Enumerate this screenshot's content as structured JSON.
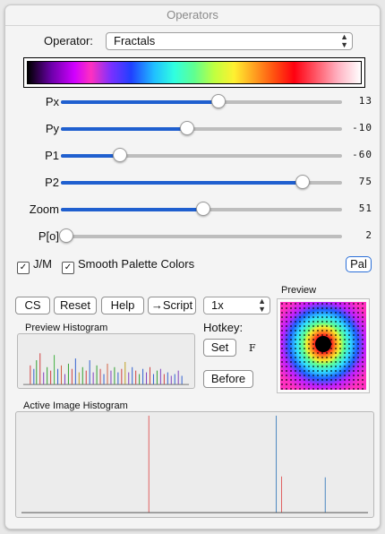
{
  "window": {
    "title": "Operators"
  },
  "operator": {
    "label": "Operator:",
    "value": "Fractals"
  },
  "sliders": [
    {
      "label": "Px",
      "value": "13",
      "fraction": 0.56
    },
    {
      "label": "Py",
      "value": "-10",
      "fraction": 0.45
    },
    {
      "label": "P1",
      "value": "-60",
      "fraction": 0.21
    },
    {
      "label": "P2",
      "value": "75",
      "fraction": 0.86
    },
    {
      "label": "Zoom",
      "value": "51",
      "fraction": 0.505
    },
    {
      "label": "P[o]",
      "value": "2",
      "fraction": 0.02
    }
  ],
  "options": {
    "jm_label": "J/M",
    "jm_checked": true,
    "smooth_label": "Smooth Palette Colors",
    "smooth_checked": true,
    "pal_label": "Pal"
  },
  "buttons": {
    "cs": "CS",
    "reset": "Reset",
    "help": "Help",
    "script": "→Script",
    "zoom_select": "1x",
    "set": "Set",
    "before": "Before"
  },
  "hotkey": {
    "label": "Hotkey:",
    "key": "F"
  },
  "preview": {
    "label": "Preview"
  },
  "preview_histogram": {
    "label": "Preview Histogram"
  },
  "active_histogram": {
    "label": "Active Image Histogram"
  },
  "colors": {
    "accent": "#1f5fcf",
    "track": "#bdbdbd"
  }
}
